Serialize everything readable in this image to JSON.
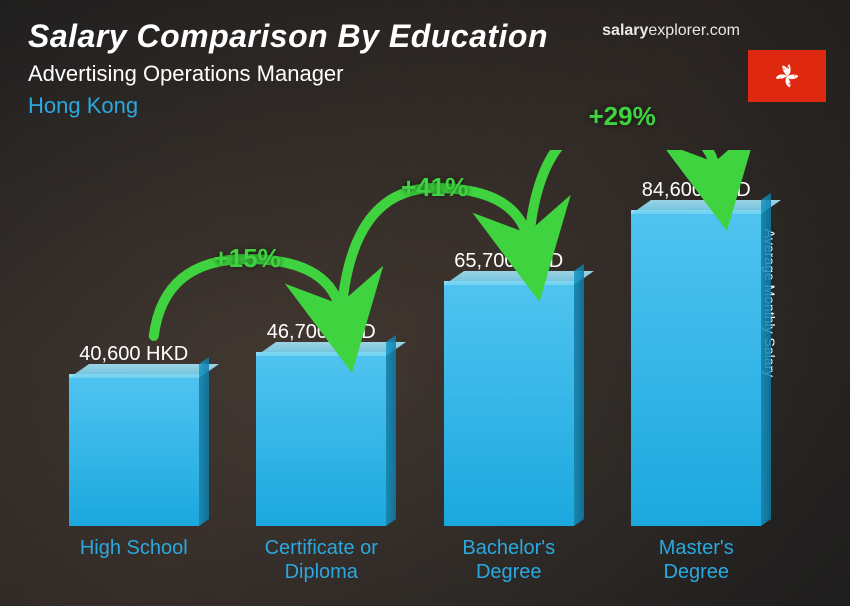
{
  "header": {
    "title": "Salary Comparison By Education",
    "subtitle": "Advertising Operations Manager",
    "location": "Hong Kong"
  },
  "watermark": {
    "bold_part": "salary",
    "rest": "explorer.com"
  },
  "flag": {
    "name": "hong-kong-flag",
    "bg_color": "#de2910"
  },
  "yaxis_label": "Average Monthly Salary",
  "chart": {
    "type": "bar",
    "currency": "HKD",
    "max_value": 84600,
    "bar_color_top": "#4fc3f0",
    "bar_color_bottom": "#1ba8de",
    "value_color": "#ffffff",
    "category_color": "#29a9e0",
    "arrow_color": "#3fd43f",
    "items": [
      {
        "category": "High School",
        "value": 40600,
        "value_label": "40,600 HKD"
      },
      {
        "category": "Certificate or Diploma",
        "value": 46700,
        "value_label": "46,700 HKD"
      },
      {
        "category": "Bachelor's Degree",
        "value": 65700,
        "value_label": "65,700 HKD"
      },
      {
        "category": "Master's Degree",
        "value": 84600,
        "value_label": "84,600 HKD"
      }
    ],
    "increases": [
      {
        "label": "+15%"
      },
      {
        "label": "+41%"
      },
      {
        "label": "+29%"
      }
    ]
  }
}
